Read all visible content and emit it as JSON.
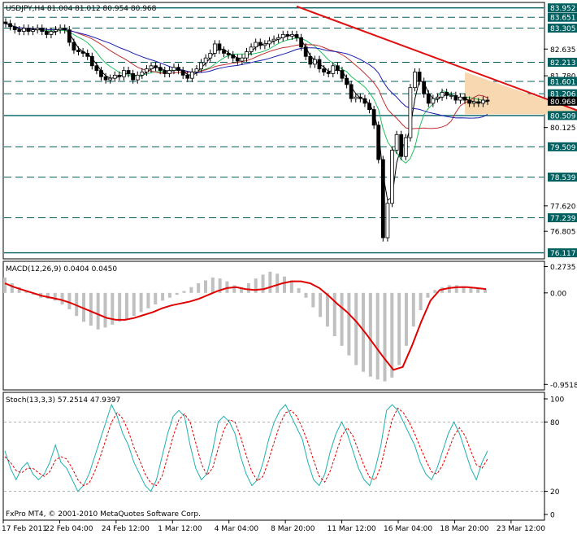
{
  "chart_data": [
    {
      "type": "candlestick",
      "header": "USDJPY,H4  81.004 81.012 80.954 80.968",
      "price_axis_labels": [
        "83.952",
        "83.651",
        "83.305",
        "82.635",
        "82.213",
        "81.780",
        "81.601",
        "81.206",
        "80.968",
        "80.509",
        "80.125",
        "79.509",
        "78.539",
        "77.620",
        "77.239",
        "76.805",
        "76.117"
      ],
      "highlighted_labels": [
        "83.952",
        "83.651",
        "83.305",
        "82.213",
        "81.601",
        "81.206",
        "80.968",
        "80.509",
        "79.509",
        "78.539",
        "77.239",
        "76.117"
      ],
      "solid_levels": [
        83.952,
        80.509,
        76.117
      ],
      "dashed_levels": [
        83.651,
        83.305,
        82.213,
        81.601,
        81.206,
        79.509,
        78.539,
        77.239
      ],
      "current_price": 80.968,
      "ylim": [
        75.95,
        84.1
      ],
      "trendline": {
        "from_index": 64,
        "from_price": 84.0,
        "to_index": 128,
        "to_price": 80.55
      },
      "triangle_zone": {
        "left_index": 101,
        "right_index": 128,
        "top": [
          81.9,
          80.55
        ],
        "bottom": [
          80.55,
          80.55
        ]
      },
      "close": [
        83.45,
        83.35,
        83.25,
        83.2,
        83.3,
        83.2,
        83.25,
        83.3,
        83.2,
        83.1,
        83.2,
        83.25,
        83.3,
        83.25,
        82.85,
        82.6,
        82.55,
        82.5,
        82.4,
        82.1,
        81.95,
        81.75,
        81.65,
        81.7,
        81.8,
        81.75,
        81.95,
        81.85,
        81.65,
        81.8,
        81.9,
        82.0,
        82.1,
        82.05,
        81.95,
        81.85,
        81.95,
        82.05,
        81.95,
        81.8,
        81.7,
        81.9,
        82.0,
        82.2,
        82.35,
        82.5,
        82.8,
        82.6,
        82.5,
        82.45,
        82.35,
        82.25,
        82.35,
        82.55,
        82.7,
        82.85,
        82.75,
        82.8,
        82.9,
        82.95,
        83.0,
        83.1,
        83.05,
        83.1,
        83.0,
        82.7,
        82.4,
        82.15,
        82.3,
        82.0,
        81.9,
        81.85,
        82.1,
        81.95,
        81.7,
        81.5,
        81.05,
        81.1,
        81.05,
        80.9,
        80.7,
        80.2,
        79.1,
        76.6,
        77.7,
        79.4,
        79.9,
        79.2,
        79.8,
        81.4,
        81.9,
        81.6,
        81.2,
        80.9,
        81.05,
        81.1,
        81.25,
        81.15,
        81.15,
        81.0,
        81.1,
        81.0,
        80.9,
        80.95,
        80.9,
        81.0,
        80.97
      ],
      "ma_fast_color": "#000000",
      "ma_green_color": "#22c060",
      "ma_red_color": "#c03030",
      "ma_blue_color": "#1a1ab0"
    },
    {
      "type": "macd",
      "header": "MACD(12,26,9) 0.0404 0.0450",
      "axis_labels": [
        "0.2735",
        "0.00",
        "-0.9518"
      ],
      "ylim": [
        -1.0,
        0.32
      ],
      "histogram": [
        0.16,
        0.1,
        0.06,
        0.02,
        -0.02,
        -0.05,
        -0.06,
        -0.08,
        -0.12,
        -0.17,
        -0.24,
        -0.3,
        -0.34,
        -0.38,
        -0.36,
        -0.33,
        -0.3,
        -0.27,
        -0.24,
        -0.2,
        -0.16,
        -0.12,
        -0.08,
        -0.05,
        -0.02,
        0.02,
        0.06,
        0.1,
        0.13,
        0.16,
        0.15,
        0.12,
        0.08,
        0.06,
        0.1,
        0.15,
        0.19,
        0.22,
        0.2,
        0.17,
        0.13,
        0.05,
        -0.05,
        -0.15,
        -0.25,
        -0.35,
        -0.45,
        -0.55,
        -0.65,
        -0.75,
        -0.82,
        -0.87,
        -0.9,
        -0.92,
        -0.88,
        -0.75,
        -0.55,
        -0.35,
        -0.18,
        -0.05,
        0.03,
        0.06,
        0.08,
        0.08,
        0.07,
        0.06,
        0.05,
        0.04
      ],
      "signal": [
        0.1,
        0.06,
        0.03,
        0.0,
        -0.03,
        -0.05,
        -0.07,
        -0.1,
        -0.14,
        -0.18,
        -0.22,
        -0.26,
        -0.28,
        -0.28,
        -0.26,
        -0.23,
        -0.2,
        -0.16,
        -0.13,
        -0.11,
        -0.09,
        -0.06,
        -0.02,
        0.02,
        0.05,
        0.06,
        0.04,
        0.03,
        0.04,
        0.07,
        0.1,
        0.12,
        0.12,
        0.1,
        0.05,
        -0.03,
        -0.12,
        -0.2,
        -0.3,
        -0.42,
        -0.55,
        -0.68,
        -0.8,
        -0.77,
        -0.55,
        -0.3,
        -0.08,
        0.03,
        0.05,
        0.06,
        0.06,
        0.05,
        0.04
      ]
    },
    {
      "type": "stochastic",
      "header": "Stoch(13,3,3) 57.2514 47.9397",
      "axis_labels": [
        "100",
        "80",
        "20",
        "0"
      ],
      "ylim": [
        0,
        100
      ],
      "main": [
        55,
        40,
        30,
        40,
        45,
        35,
        30,
        35,
        45,
        60,
        45,
        40,
        30,
        20,
        25,
        35,
        50,
        65,
        80,
        95,
        85,
        70,
        60,
        45,
        35,
        25,
        20,
        30,
        50,
        70,
        85,
        90,
        85,
        60,
        40,
        30,
        35,
        55,
        80,
        85,
        80,
        70,
        50,
        35,
        25,
        30,
        45,
        65,
        80,
        90,
        95,
        85,
        75,
        65,
        45,
        30,
        25,
        35,
        55,
        70,
        80,
        70,
        55,
        40,
        30,
        25,
        40,
        60,
        90,
        95,
        90,
        80,
        70,
        60,
        45,
        35,
        30,
        40,
        55,
        70,
        80,
        70,
        55,
        40,
        30,
        45,
        55
      ],
      "signal": [
        50,
        45,
        38,
        36,
        40,
        40,
        36,
        33,
        37,
        47,
        50,
        48,
        40,
        30,
        25,
        27,
        37,
        50,
        65,
        80,
        88,
        83,
        72,
        58,
        47,
        35,
        27,
        25,
        33,
        50,
        68,
        82,
        87,
        80,
        62,
        44,
        34,
        40,
        57,
        73,
        82,
        80,
        67,
        51,
        37,
        29,
        33,
        47,
        63,
        78,
        88,
        90,
        85,
        75,
        62,
        47,
        33,
        28,
        38,
        53,
        68,
        75,
        68,
        55,
        42,
        32,
        30,
        42,
        63,
        82,
        92,
        88,
        80,
        70,
        58,
        47,
        37,
        35,
        43,
        55,
        68,
        75,
        68,
        55,
        43,
        40,
        48
      ]
    }
  ],
  "date_labels": [
    "17 Feb 2011",
    "22 Feb 04:00",
    "24 Feb 12:00",
    "1 Mar 12:00",
    "4 Mar 04:00",
    "8 Mar 20:00",
    "11 Mar 12:00",
    "16 Mar 04:00",
    "18 Mar 20:00",
    "23 Mar 12:00"
  ],
  "copyright": "FxPro MT4, © 2001-2010 MetaQuotes Software Corp."
}
